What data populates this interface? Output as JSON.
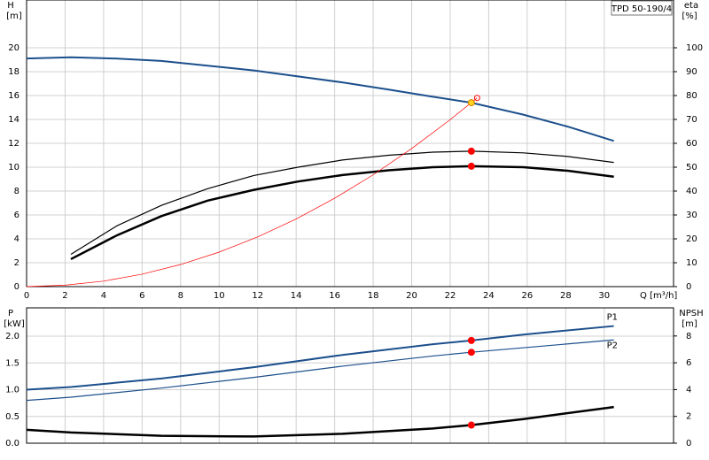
{
  "chart_data": [
    {
      "type": "line",
      "title": "TPD 50-190/4",
      "ylabel": "H",
      "yunit": "[m]",
      "y2label": "eta",
      "y2unit": "[%]",
      "xlabel": "Q [m³/h]",
      "xlim": [
        0,
        33.6
      ],
      "xticks": [
        0,
        2,
        4,
        6,
        8,
        10,
        12,
        14,
        16,
        18,
        20,
        22,
        24,
        26,
        28,
        30
      ],
      "ylim": [
        0,
        24
      ],
      "yticks": [
        0,
        2,
        4,
        6,
        8,
        10,
        12,
        14,
        16,
        18,
        20
      ],
      "y2lim": [
        0,
        120
      ],
      "y2ticks": [
        0,
        10,
        20,
        30,
        40,
        50,
        60,
        70,
        80,
        90,
        100
      ],
      "grid": true,
      "series": [
        {
          "color": "#1c4f8c",
          "line_width": 2,
          "x": [
            0,
            2.3,
            4.6,
            7,
            9.4,
            11.8,
            14.1,
            16.4,
            18.8,
            21.1,
            23.1,
            25.8,
            28.1,
            30.5
          ],
          "values": [
            19.1,
            19.2,
            19.1,
            18.9,
            18.5,
            18.1,
            17.6,
            17.1,
            16.5,
            15.9,
            15.4,
            14.4,
            13.4,
            12.2
          ]
        },
        {
          "color": "#000000",
          "line_width": 1.2,
          "axis": "y2",
          "x": [
            2.3,
            4.7,
            7,
            9.4,
            11.8,
            14.1,
            16.4,
            18.8,
            21.1,
            23.1,
            25.8,
            28.1,
            30.5
          ],
          "values": [
            13.5,
            25.5,
            34,
            41,
            46.5,
            50,
            53,
            55,
            56.3,
            56.7,
            56,
            54.5,
            52
          ]
        },
        {
          "color": "#000000",
          "line_width": 2.5,
          "axis": "y2",
          "x": [
            2.3,
            4.7,
            7,
            9.4,
            11.8,
            14.1,
            16.4,
            18.8,
            21.1,
            23.1,
            25.8,
            28.1,
            30.5
          ],
          "values": [
            11.5,
            21.5,
            29.5,
            36,
            40.5,
            44,
            46.7,
            48.7,
            50,
            50.4,
            50,
            48.5,
            46
          ]
        },
        {
          "color": "#ff0000",
          "line_width": 0.7,
          "end_marker": true,
          "x": [
            0,
            2,
            4,
            6,
            8,
            10,
            12,
            14,
            16,
            18,
            20,
            22,
            23.4
          ],
          "values": [
            0,
            0.12,
            0.46,
            1.04,
            1.85,
            2.89,
            4.16,
            5.66,
            7.4,
            9.36,
            11.56,
            13.98,
            15.8
          ]
        },
        {
          "color": "#ffd21f",
          "marker": true,
          "x": [
            23.1
          ],
          "values": [
            15.4
          ]
        },
        {
          "color": "#ff0000",
          "marker": true,
          "axis": "y2",
          "x": [
            23.1,
            23.1
          ],
          "values": [
            56.7,
            50.4
          ]
        }
      ]
    },
    {
      "type": "line",
      "ylabel": "P",
      "yunit": "[kW]",
      "y2label": "NPSH",
      "y2unit": "[m]",
      "xlim": [
        0,
        33.6
      ],
      "xticks": [
        0,
        2,
        4,
        6,
        8,
        10,
        12,
        14,
        16,
        18,
        20,
        22,
        24,
        26,
        28,
        30
      ],
      "ylim": [
        0,
        2.53
      ],
      "yticks": [
        {
          "value": 0,
          "label": "0.0"
        },
        0.5,
        {
          "value": 1,
          "label": "1.0"
        },
        1.5,
        {
          "value": 2,
          "label": "2.0"
        }
      ],
      "y2lim": [
        0,
        10.1
      ],
      "y2ticks": [
        0,
        2,
        4,
        6,
        8
      ],
      "grid": true,
      "series": [
        {
          "name": "P1",
          "color": "#1c4f8c",
          "line_width": 2,
          "x": [
            0,
            2.3,
            7,
            11.8,
            16.4,
            21.1,
            23.1,
            25.8,
            30.5
          ],
          "values": [
            1.0,
            1.05,
            1.21,
            1.42,
            1.65,
            1.85,
            1.92,
            2.03,
            2.19
          ]
        },
        {
          "name": "P2",
          "color": "#1c4f8c",
          "line_width": 1.2,
          "x": [
            0,
            2.3,
            7,
            11.8,
            16.4,
            21.1,
            23.1,
            30.5
          ],
          "values": [
            0.8,
            0.86,
            1.03,
            1.23,
            1.44,
            1.63,
            1.7,
            1.93
          ]
        },
        {
          "color": "#000000",
          "line_width": 2.5,
          "axis": "y2",
          "x": [
            0,
            2.3,
            7,
            11.8,
            16.4,
            21.1,
            23.1,
            25.8,
            30.5
          ],
          "values": [
            1.0,
            0.8,
            0.55,
            0.5,
            0.7,
            1.1,
            1.35,
            1.8,
            2.7
          ]
        },
        {
          "color": "#ff0000",
          "marker": true,
          "x": [
            23.1,
            23.1
          ],
          "values": [
            1.92,
            1.7
          ]
        },
        {
          "color": "#ff0000",
          "marker": true,
          "axis": "y2",
          "x": [
            23.1
          ],
          "values": [
            1.35
          ]
        }
      ]
    }
  ]
}
